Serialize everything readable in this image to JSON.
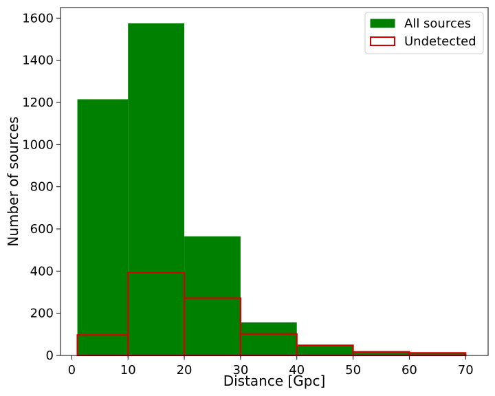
{
  "chart_data": {
    "type": "bar",
    "subtype": "histogram",
    "xlabel": "Distance [Gpc]",
    "ylabel": "Number of sources",
    "xlim": [
      -2,
      74
    ],
    "ylim": [
      0,
      1650
    ],
    "xticks": [
      0,
      10,
      20,
      30,
      40,
      50,
      60,
      70
    ],
    "yticks": [
      0,
      200,
      400,
      600,
      800,
      1000,
      1200,
      1400,
      1600
    ],
    "grid": false,
    "legend_position": "top-right",
    "series": [
      {
        "name": "All sources",
        "style": "filled",
        "color": "#008000",
        "bins": [
          {
            "x0": 1,
            "x1": 10,
            "value": 1215
          },
          {
            "x0": 10,
            "x1": 20,
            "value": 1575
          },
          {
            "x0": 20,
            "x1": 30,
            "value": 565
          },
          {
            "x0": 30,
            "x1": 40,
            "value": 157
          },
          {
            "x0": 40,
            "x1": 50,
            "value": 50
          },
          {
            "x0": 50,
            "x1": 60,
            "value": 18
          },
          {
            "x0": 60,
            "x1": 70,
            "value": 12
          }
        ]
      },
      {
        "name": "Undetected",
        "style": "outline",
        "color": "#d40000",
        "bins": [
          {
            "x0": 1,
            "x1": 10,
            "value": 97
          },
          {
            "x0": 10,
            "x1": 20,
            "value": 393
          },
          {
            "x0": 20,
            "x1": 30,
            "value": 272
          },
          {
            "x0": 30,
            "x1": 40,
            "value": 102
          },
          {
            "x0": 40,
            "x1": 50,
            "value": 48
          },
          {
            "x0": 50,
            "x1": 60,
            "value": 17
          },
          {
            "x0": 60,
            "x1": 70,
            "value": 12
          }
        ]
      }
    ]
  }
}
